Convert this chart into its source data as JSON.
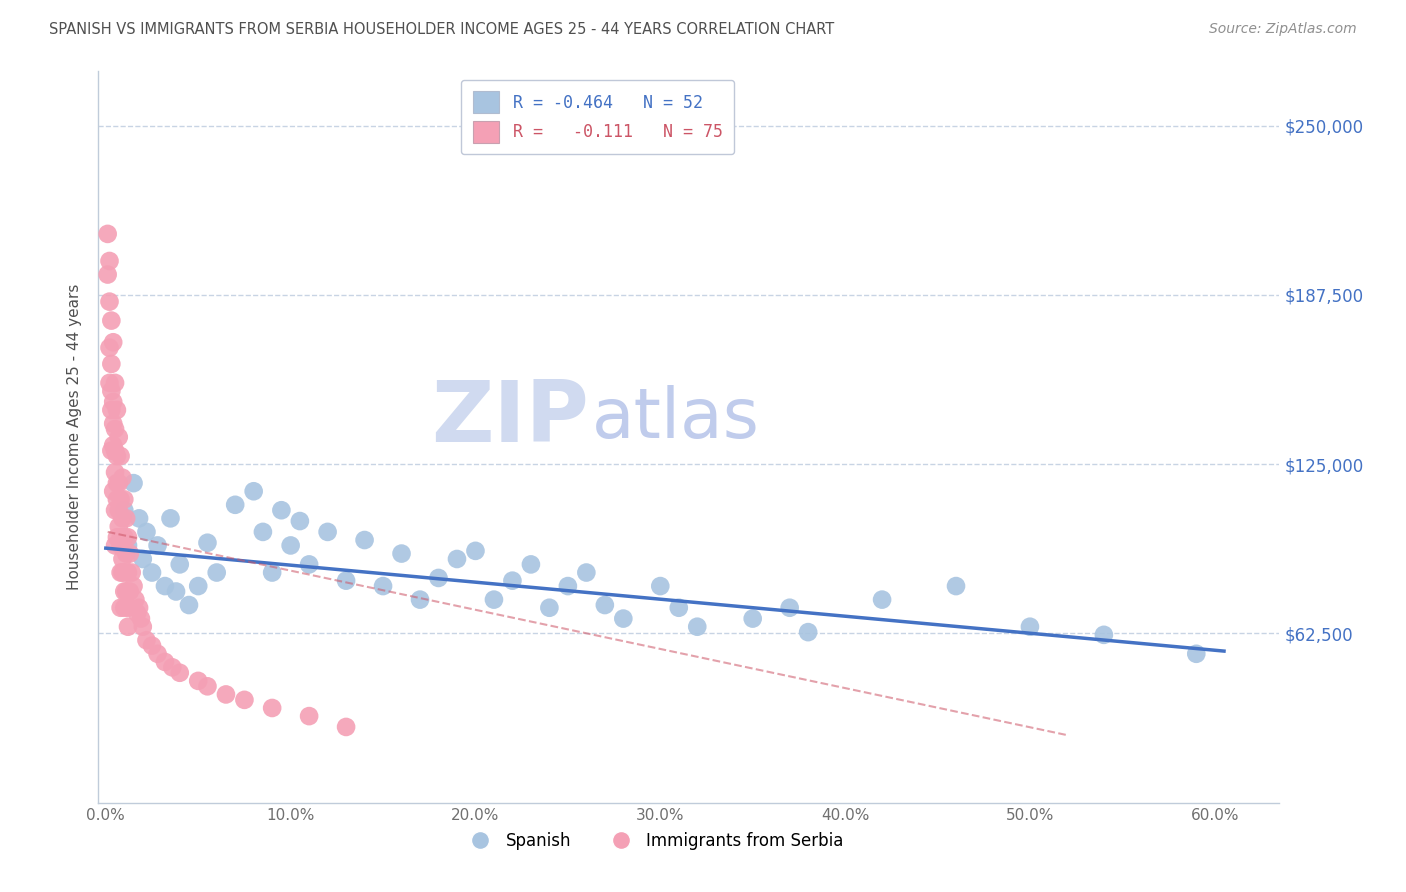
{
  "title": "SPANISH VS IMMIGRANTS FROM SERBIA HOUSEHOLDER INCOME AGES 25 - 44 YEARS CORRELATION CHART",
  "source": "Source: ZipAtlas.com",
  "ylabel": "Householder Income Ages 25 - 44 years",
  "ytick_labels": [
    "$62,500",
    "$125,000",
    "$187,500",
    "$250,000"
  ],
  "ytick_vals": [
    62500,
    125000,
    187500,
    250000
  ],
  "xtick_labels": [
    "0.0%",
    "10.0%",
    "20.0%",
    "30.0%",
    "40.0%",
    "50.0%",
    "60.0%"
  ],
  "xtick_vals": [
    0.0,
    0.1,
    0.2,
    0.3,
    0.4,
    0.5,
    0.6
  ],
  "xlim": [
    -0.004,
    0.635
  ],
  "ylim": [
    0,
    270000
  ],
  "legend_r_blue": "R = -0.464",
  "legend_n_blue": "N = 52",
  "legend_r_pink": "R =   -0.111",
  "legend_n_pink": "N = 75",
  "blue_scatter_color": "#a8c4e0",
  "pink_scatter_color": "#f4a0b5",
  "trendline_blue": "#4472c4",
  "trendline_pink": "#cc5566",
  "watermark_zip_color": "#d0daf0",
  "watermark_atlas_color": "#c0ccec",
  "title_color": "#505050",
  "source_color": "#909090",
  "right_tick_color": "#4472c4",
  "grid_color": "#c8d4e4",
  "spanish_x": [
    0.01,
    0.012,
    0.015,
    0.018,
    0.02,
    0.022,
    0.025,
    0.028,
    0.032,
    0.035,
    0.038,
    0.04,
    0.045,
    0.05,
    0.055,
    0.06,
    0.07,
    0.08,
    0.085,
    0.09,
    0.095,
    0.1,
    0.105,
    0.11,
    0.12,
    0.13,
    0.14,
    0.15,
    0.16,
    0.17,
    0.18,
    0.19,
    0.2,
    0.21,
    0.22,
    0.23,
    0.24,
    0.25,
    0.26,
    0.27,
    0.28,
    0.3,
    0.31,
    0.32,
    0.35,
    0.37,
    0.38,
    0.42,
    0.46,
    0.5,
    0.54,
    0.59
  ],
  "spanish_y": [
    108000,
    95000,
    118000,
    105000,
    90000,
    100000,
    85000,
    95000,
    80000,
    105000,
    78000,
    88000,
    73000,
    80000,
    96000,
    85000,
    110000,
    115000,
    100000,
    85000,
    108000,
    95000,
    104000,
    88000,
    100000,
    82000,
    97000,
    80000,
    92000,
    75000,
    83000,
    90000,
    93000,
    75000,
    82000,
    88000,
    72000,
    80000,
    85000,
    73000,
    68000,
    80000,
    72000,
    65000,
    68000,
    72000,
    63000,
    75000,
    80000,
    65000,
    62000,
    55000
  ],
  "serbia_x": [
    0.001,
    0.001,
    0.002,
    0.002,
    0.002,
    0.003,
    0.003,
    0.003,
    0.003,
    0.004,
    0.004,
    0.004,
    0.004,
    0.005,
    0.005,
    0.005,
    0.005,
    0.005,
    0.006,
    0.006,
    0.006,
    0.006,
    0.007,
    0.007,
    0.007,
    0.008,
    0.008,
    0.008,
    0.008,
    0.008,
    0.009,
    0.009,
    0.009,
    0.01,
    0.01,
    0.01,
    0.01,
    0.011,
    0.011,
    0.011,
    0.012,
    0.012,
    0.012,
    0.013,
    0.013,
    0.014,
    0.015,
    0.016,
    0.017,
    0.018,
    0.019,
    0.02,
    0.022,
    0.025,
    0.028,
    0.032,
    0.036,
    0.04,
    0.05,
    0.055,
    0.065,
    0.075,
    0.09,
    0.11,
    0.13,
    0.002,
    0.003,
    0.004,
    0.005,
    0.006,
    0.007,
    0.008,
    0.009,
    0.01,
    0.012
  ],
  "serbia_y": [
    210000,
    195000,
    200000,
    185000,
    155000,
    178000,
    162000,
    145000,
    130000,
    170000,
    148000,
    132000,
    115000,
    155000,
    138000,
    122000,
    108000,
    95000,
    145000,
    128000,
    112000,
    98000,
    135000,
    118000,
    102000,
    128000,
    112000,
    98000,
    85000,
    72000,
    120000,
    105000,
    90000,
    112000,
    98000,
    85000,
    72000,
    105000,
    92000,
    78000,
    98000,
    85000,
    72000,
    92000,
    78000,
    85000,
    80000,
    75000,
    70000,
    72000,
    68000,
    65000,
    60000,
    58000,
    55000,
    52000,
    50000,
    48000,
    45000,
    43000,
    40000,
    38000,
    35000,
    32000,
    28000,
    168000,
    152000,
    140000,
    130000,
    118000,
    108000,
    95000,
    85000,
    78000,
    65000
  ]
}
